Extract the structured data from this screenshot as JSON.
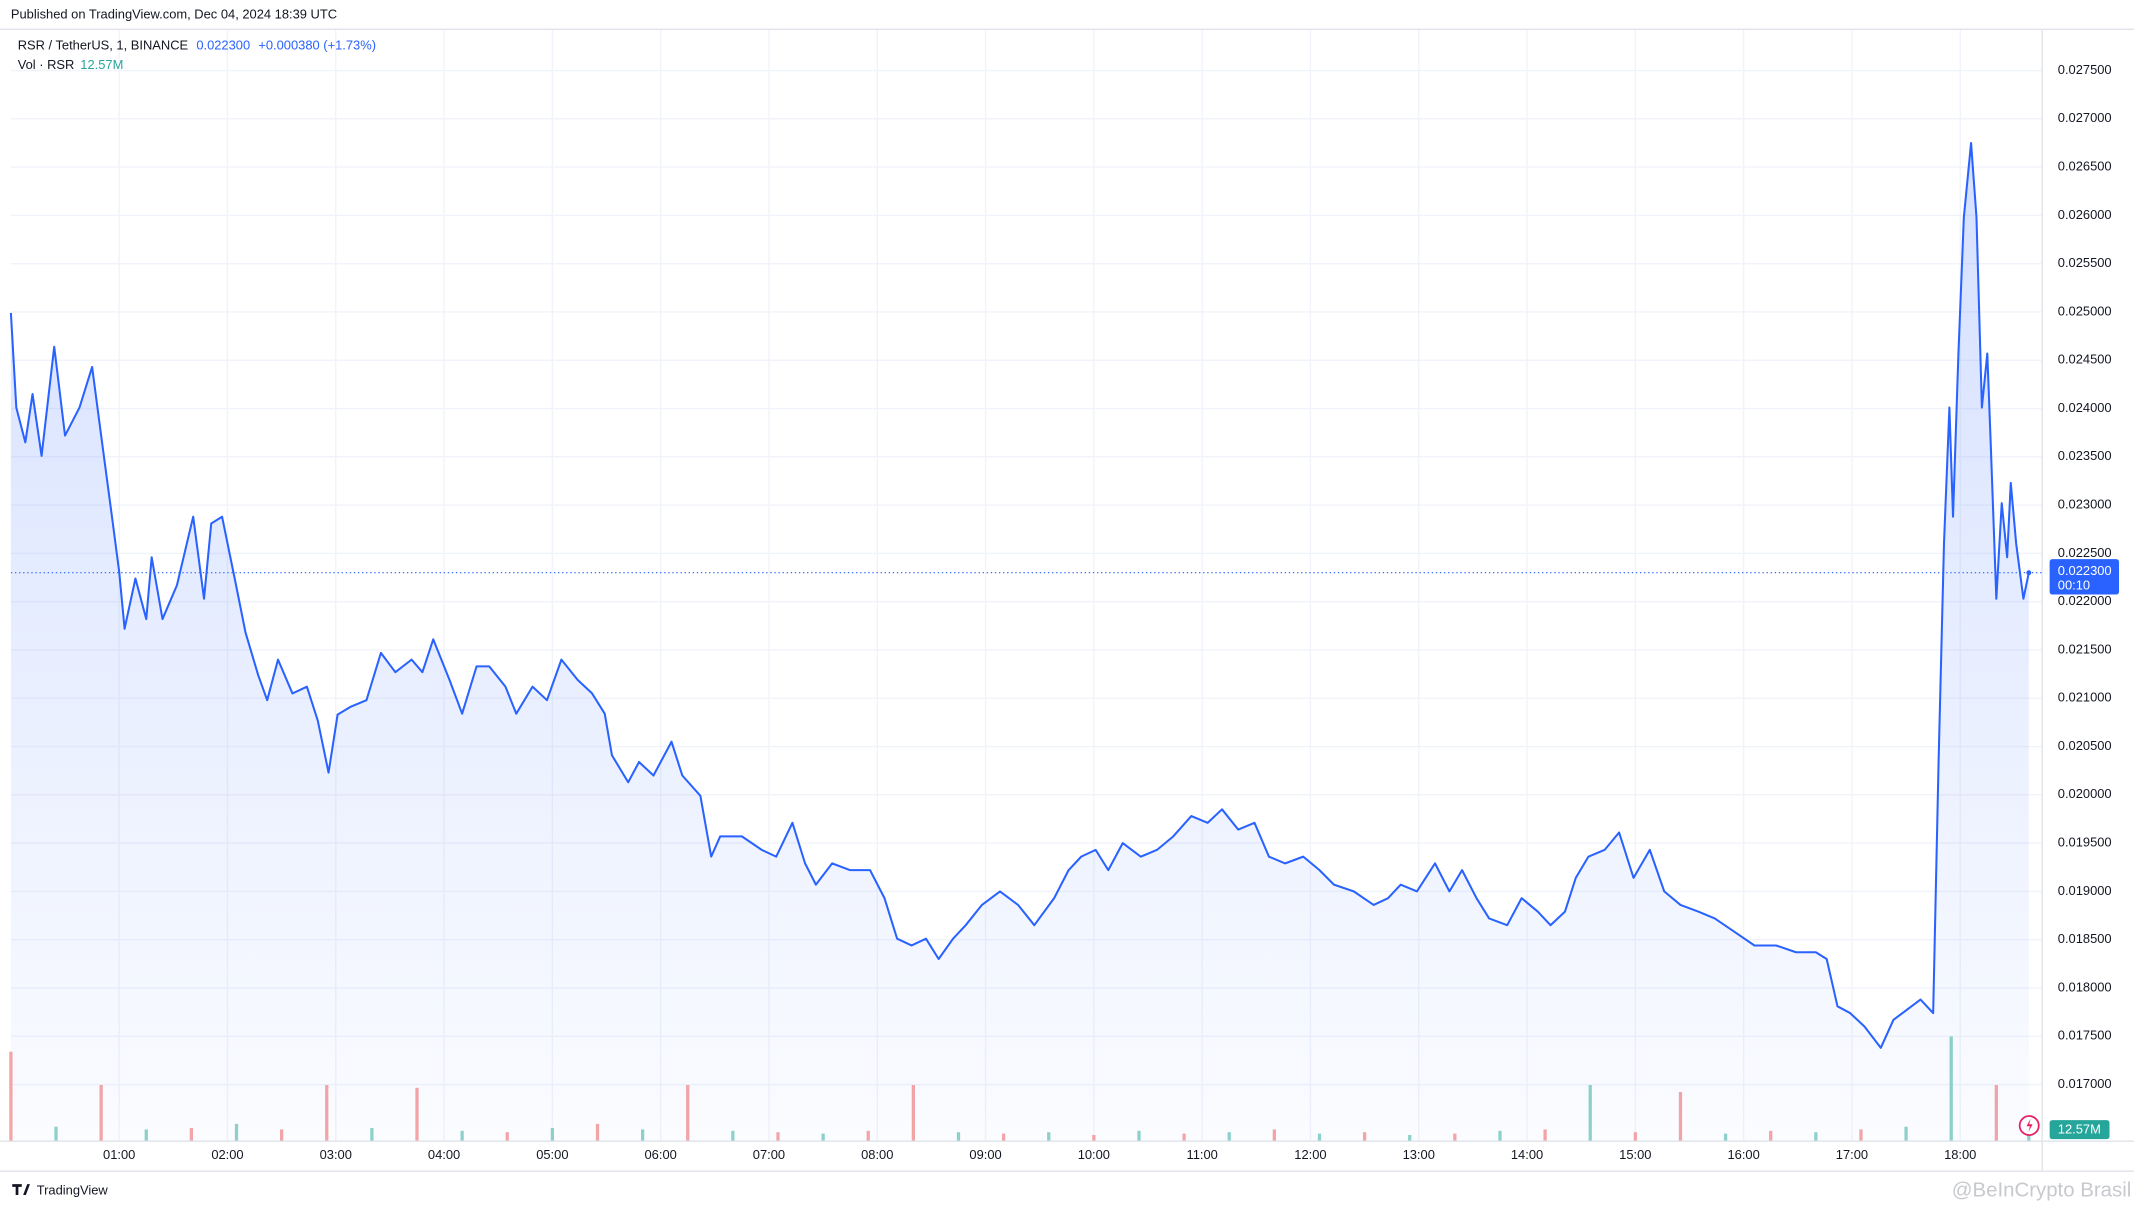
{
  "chart_data": {
    "type": "line",
    "published": "Published on TradingView.com, Dec 04, 2024 18:39 UTC",
    "symbol": "RSR / TetherUS, 1, BINANCE",
    "last_price_label": "0.022300",
    "change_label": "+0.000380 (+1.73%)",
    "countdown": "00:10",
    "brand": "TradingView",
    "watermark": "@BeInCrypto Brasil",
    "series": [
      {
        "name": "RSR",
        "color": "#2962ff",
        "x": [
          0,
          3,
          8,
          12,
          17,
          24,
          30,
          38,
          45,
          51,
          56,
          60,
          63,
          69,
          75,
          78,
          84,
          92,
          101,
          107,
          111,
          117,
          124,
          130,
          137,
          142,
          148,
          156,
          164,
          170,
          176,
          181,
          188,
          197,
          205,
          213,
          222,
          228,
          234,
          243,
          250,
          258,
          265,
          274,
          280,
          289,
          297,
          305,
          314,
          322,
          329,
          333,
          342,
          348,
          356,
          366,
          372,
          382,
          388,
          393,
          405,
          416,
          424,
          433,
          440,
          446,
          455,
          465,
          476,
          484,
          491,
          499,
          507,
          514,
          522,
          529,
          538,
          548,
          558,
          567,
          578,
          586,
          593,
          601,
          608,
          616,
          626,
          635,
          644,
          654,
          663,
          671,
          680,
          689,
          697,
          706,
          716,
          725,
          733,
          744,
          755,
          763,
          770,
          779,
          789,
          797,
          804,
          812,
          819,
          829,
          837,
          846,
          853,
          861,
          867,
          874,
          883,
          891,
          899,
          908,
          916,
          925,
          935,
          944,
          955,
          966,
          978,
          989,
          1000,
          1006,
          1012,
          1019,
          1027,
          1036,
          1043,
          1053,
          1058,
          1065,
          1068,
          1071,
          1074,
          1076,
          1079,
          1082,
          1086,
          1089,
          1092,
          1095,
          1097,
          1100,
          1103,
          1106,
          1108,
          1111,
          1115,
          1118
        ],
        "values": [
          0.02499,
          0.02401,
          0.02365,
          0.02415,
          0.02351,
          0.02464,
          0.02372,
          0.02401,
          0.02443,
          0.02358,
          0.02288,
          0.02231,
          0.02172,
          0.02224,
          0.02182,
          0.02246,
          0.02182,
          0.02217,
          0.02288,
          0.02203,
          0.02281,
          0.02288,
          0.02224,
          0.02168,
          0.02124,
          0.02098,
          0.0214,
          0.02105,
          0.02112,
          0.02077,
          0.02023,
          0.02083,
          0.02091,
          0.02098,
          0.02147,
          0.02127,
          0.0214,
          0.02127,
          0.02161,
          0.02119,
          0.02084,
          0.02133,
          0.02133,
          0.02112,
          0.02084,
          0.02112,
          0.02098,
          0.0214,
          0.02119,
          0.02105,
          0.02084,
          0.02041,
          0.02013,
          0.02034,
          0.0202,
          0.02055,
          0.0202,
          0.01999,
          0.01936,
          0.01957,
          0.01957,
          0.01943,
          0.01936,
          0.01971,
          0.01929,
          0.01907,
          0.01929,
          0.01922,
          0.01922,
          0.01893,
          0.01851,
          0.01844,
          0.01851,
          0.0183,
          0.01851,
          0.01865,
          0.01886,
          0.019,
          0.01886,
          0.01865,
          0.01893,
          0.01922,
          0.01936,
          0.01943,
          0.01922,
          0.0195,
          0.01936,
          0.01943,
          0.01957,
          0.01978,
          0.01971,
          0.01985,
          0.01964,
          0.01971,
          0.01936,
          0.01929,
          0.01936,
          0.01922,
          0.01907,
          0.019,
          0.01886,
          0.01893,
          0.01907,
          0.019,
          0.01929,
          0.019,
          0.01922,
          0.01893,
          0.01872,
          0.01865,
          0.01893,
          0.01879,
          0.01865,
          0.01879,
          0.01914,
          0.01936,
          0.01943,
          0.01961,
          0.01914,
          0.01943,
          0.019,
          0.01886,
          0.01879,
          0.01872,
          0.01858,
          0.01844,
          0.01844,
          0.01837,
          0.01837,
          0.0183,
          0.01781,
          0.01774,
          0.0176,
          0.01738,
          0.01767,
          0.01781,
          0.01788,
          0.01774,
          0.02034,
          0.0226,
          0.02401,
          0.02288,
          0.02457,
          0.02598,
          0.02675,
          0.02598,
          0.02401,
          0.02457,
          0.02358,
          0.02203,
          0.02302,
          0.02246,
          0.02323,
          0.0226,
          0.02203,
          0.0223
        ]
      }
    ],
    "volume": {
      "name": "Vol · RSR",
      "last_label": "12.57M",
      "x": [
        0,
        25,
        50,
        75,
        100,
        125,
        150,
        175,
        200,
        225,
        250,
        275,
        300,
        325,
        350,
        375,
        400,
        425,
        450,
        475,
        500,
        525,
        550,
        575,
        600,
        625,
        650,
        675,
        700,
        725,
        750,
        775,
        800,
        825,
        850,
        875,
        900,
        925,
        950,
        975,
        1000,
        1025,
        1050,
        1075,
        1100,
        1118
      ],
      "values": [
        64,
        10,
        40,
        8,
        9,
        12,
        8,
        40,
        9,
        38,
        7,
        6,
        9,
        12,
        8,
        40,
        7,
        6,
        5,
        7,
        40,
        6,
        5,
        6,
        4,
        7,
        5,
        6,
        8,
        5,
        6,
        4,
        5,
        7,
        8,
        40,
        6,
        35,
        5,
        7,
        6,
        8,
        10,
        75,
        40,
        12.57
      ],
      "colors": [
        "#f7a5a5",
        "#8fd3c9",
        "#f7a5a5",
        "#8fd3c9",
        "#f7a5a5",
        "#8fd3c9",
        "#f7a5a5",
        "#f7a5a5",
        "#8fd3c9",
        "#f7a5a5",
        "#8fd3c9",
        "#f7a5a5",
        "#8fd3c9",
        "#f7a5a5",
        "#8fd3c9",
        "#f7a5a5",
        "#8fd3c9",
        "#f7a5a5",
        "#8fd3c9",
        "#f7a5a5",
        "#f7a5a5",
        "#8fd3c9",
        "#f7a5a5",
        "#8fd3c9",
        "#f7a5a5",
        "#8fd3c9",
        "#f7a5a5",
        "#8fd3c9",
        "#f7a5a5",
        "#8fd3c9",
        "#f7a5a5",
        "#8fd3c9",
        "#f7a5a5",
        "#8fd3c9",
        "#f7a5a5",
        "#8fd3c9",
        "#f7a5a5",
        "#f7a5a5",
        "#8fd3c9",
        "#f7a5a5",
        "#8fd3c9",
        "#f7a5a5",
        "#8fd3c9",
        "#8fd3c9",
        "#f7a5a5",
        "#8fd3c9"
      ],
      "vlim": [
        0,
        200
      ],
      "tag_color": "#26a69a"
    },
    "xlim": [
      0,
      1125
    ],
    "xticks": [
      {
        "value": 60,
        "label": "01:00"
      },
      {
        "value": 120,
        "label": "02:00"
      },
      {
        "value": 180,
        "label": "03:00"
      },
      {
        "value": 240,
        "label": "04:00"
      },
      {
        "value": 300,
        "label": "05:00"
      },
      {
        "value": 360,
        "label": "06:00"
      },
      {
        "value": 420,
        "label": "07:00"
      },
      {
        "value": 480,
        "label": "08:00"
      },
      {
        "value": 540,
        "label": "09:00"
      },
      {
        "value": 600,
        "label": "10:00"
      },
      {
        "value": 660,
        "label": "11:00"
      },
      {
        "value": 720,
        "label": "12:00"
      },
      {
        "value": 780,
        "label": "13:00"
      },
      {
        "value": 840,
        "label": "14:00"
      },
      {
        "value": 900,
        "label": "15:00"
      },
      {
        "value": 960,
        "label": "16:00"
      },
      {
        "value": 1020,
        "label": "17:00"
      },
      {
        "value": 1080,
        "label": "18:00"
      }
    ],
    "ylim": [
      0.01642,
      0.02792
    ],
    "yticks": [
      {
        "value": 0.017,
        "label": "0.017000"
      },
      {
        "value": 0.0175,
        "label": "0.017500"
      },
      {
        "value": 0.018,
        "label": "0.018000"
      },
      {
        "value": 0.0185,
        "label": "0.018500"
      },
      {
        "value": 0.019,
        "label": "0.019000"
      },
      {
        "value": 0.0195,
        "label": "0.019500"
      },
      {
        "value": 0.02,
        "label": "0.020000"
      },
      {
        "value": 0.0205,
        "label": "0.020500"
      },
      {
        "value": 0.021,
        "label": "0.021000"
      },
      {
        "value": 0.0215,
        "label": "0.021500"
      },
      {
        "value": 0.022,
        "label": "0.022000"
      },
      {
        "value": 0.0225,
        "label": "0.022500"
      },
      {
        "value": 0.023,
        "label": "0.023000"
      },
      {
        "value": 0.0235,
        "label": "0.023500"
      },
      {
        "value": 0.024,
        "label": "0.024000"
      },
      {
        "value": 0.0245,
        "label": "0.024500"
      },
      {
        "value": 0.025,
        "label": "0.025000"
      },
      {
        "value": 0.0255,
        "label": "0.025500"
      },
      {
        "value": 0.026,
        "label": "0.026000"
      },
      {
        "value": 0.0265,
        "label": "0.026500"
      },
      {
        "value": 0.027,
        "label": "0.027000"
      },
      {
        "value": 0.0275,
        "label": "0.027500"
      }
    ],
    "grid": true
  }
}
